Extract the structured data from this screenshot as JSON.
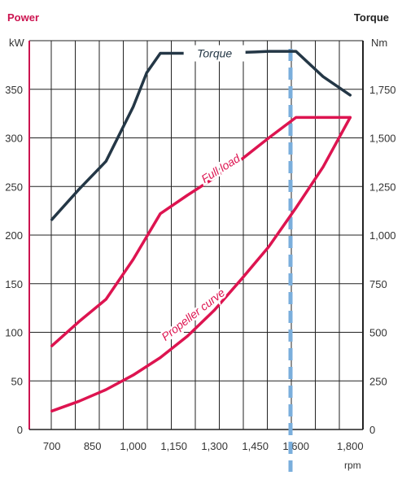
{
  "chart_data": {
    "type": "line",
    "left_title": "Power",
    "right_title": "Torque",
    "left_unit": "kW",
    "right_unit": "Nm",
    "x_unit": "rpm",
    "x_ticks": [
      "700",
      "850",
      "1,000",
      "1,150",
      "1,300",
      "1,450",
      "1,600",
      "1,800"
    ],
    "x_tick_values": [
      700,
      850,
      1000,
      1150,
      1300,
      1450,
      1600,
      1800
    ],
    "y_left_ticks": [
      "0",
      "50",
      "100",
      "150",
      "200",
      "250",
      "300",
      "350"
    ],
    "y_left_tick_values": [
      0,
      50,
      100,
      150,
      200,
      250,
      300,
      350
    ],
    "y_right_ticks": [
      "0",
      "250",
      "500",
      "750",
      "1,000",
      "1,250",
      "1,500",
      "1,750"
    ],
    "y_right_tick_values": [
      0,
      250,
      500,
      750,
      1000,
      1250,
      1500,
      1750
    ],
    "x_range": [
      617,
      1847
    ],
    "y_left_range": [
      0,
      400
    ],
    "y_right_range": [
      0,
      2000
    ],
    "grid": true,
    "marker_x": 1580,
    "marker_color": "#7aaedc",
    "series": [
      {
        "name": "Torque",
        "axis": "right",
        "color": "#243746",
        "x": [
          700,
          800,
          900,
          1000,
          1050,
          1100,
          1150,
          1300,
          1450,
          1500,
          1600,
          1700,
          1800
        ],
        "y": [
          1080,
          1235,
          1380,
          1660,
          1835,
          1935,
          1935,
          1935,
          1942,
          1945,
          1945,
          1815,
          1720
        ]
      },
      {
        "name": "Full load",
        "axis": "left",
        "color": "#dd1450",
        "x": [
          700,
          800,
          900,
          1000,
          1100,
          1200,
          1300,
          1400,
          1500,
          1600,
          1800
        ],
        "y": [
          86,
          111,
          134,
          175,
          222,
          241,
          259,
          278,
          300,
          321,
          321
        ]
      },
      {
        "name": "Propeller curve",
        "axis": "left",
        "color": "#dd1450",
        "x": [
          700,
          800,
          900,
          1000,
          1100,
          1200,
          1300,
          1400,
          1500,
          1600,
          1700,
          1800
        ],
        "y": [
          19,
          29,
          41,
          56,
          74,
          96,
          123,
          155,
          188,
          228,
          270,
          321
        ]
      }
    ]
  }
}
